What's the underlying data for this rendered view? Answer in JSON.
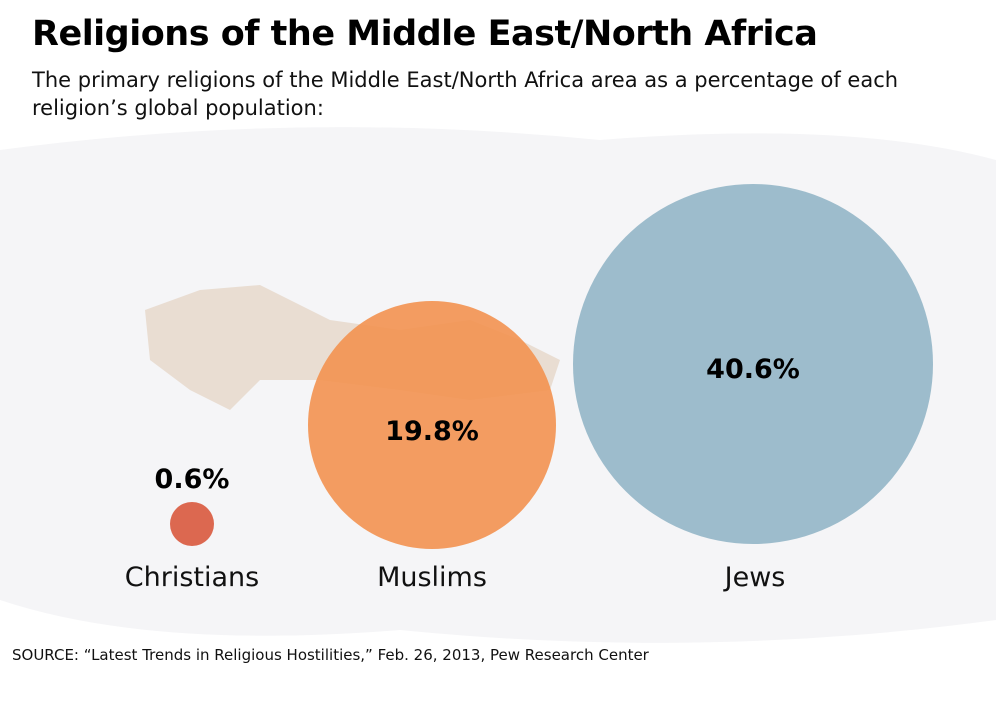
{
  "chart_data": {
    "type": "bubble",
    "title": "Religions of the Middle East/North Africa",
    "subtitle": "The primary religions of the Middle East/North Africa area as a percentage of each religion’s global population:",
    "categories": [
      "Christians",
      "Muslims",
      "Jews"
    ],
    "values": [
      0.6,
      19.8,
      40.6
    ],
    "value_labels": [
      "0.6%",
      "19.8%",
      "40.6%"
    ],
    "colors": [
      "#dc6850",
      "#f39250",
      "#93b6c6"
    ],
    "source": "SOURCE: “Latest Trends in Religious Hostilities,” Feb. 26, 2013, Pew Research Center"
  }
}
